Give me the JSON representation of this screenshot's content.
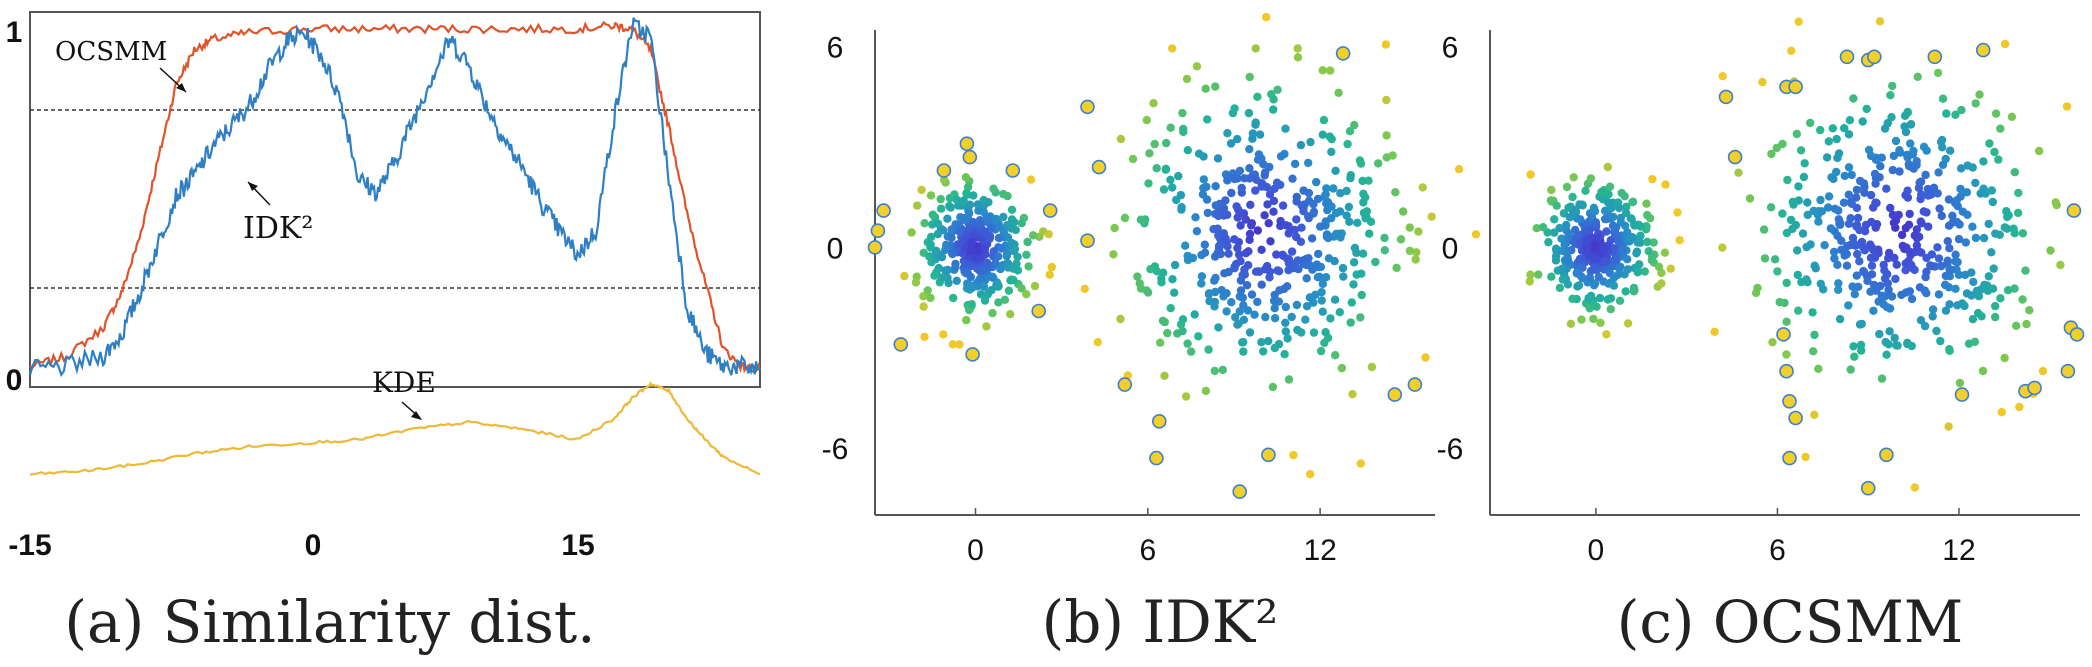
{
  "chart_data": [
    {
      "id": "a",
      "type": "line",
      "caption": "(a) Similarity dist.",
      "xlim": [
        -15,
        25
      ],
      "x_ticks": [
        "-15",
        "0",
        "15"
      ],
      "y_ticks": [
        "1",
        "0"
      ],
      "grid": false,
      "reference_lines_y": [
        0.82,
        0.25
      ],
      "annotations": [
        {
          "text": "OCSMM",
          "series": "OCSMM"
        },
        {
          "text": "IDK²",
          "series": "IDK²"
        },
        {
          "text": "KDE",
          "series": "KDE"
        }
      ],
      "series": [
        {
          "name": "OCSMM",
          "color": "#e0542c",
          "x": [
            -15,
            -13,
            -11,
            -10,
            -9,
            -8,
            -7,
            -6,
            -5,
            -3,
            0,
            3,
            6,
            9,
            12,
            15,
            17,
            18,
            19,
            20,
            21,
            22,
            23,
            24,
            25
          ],
          "y": [
            0.01,
            0.04,
            0.12,
            0.22,
            0.38,
            0.6,
            0.82,
            0.92,
            0.95,
            0.97,
            0.98,
            0.98,
            0.98,
            0.98,
            0.98,
            0.98,
            0.99,
            0.98,
            0.92,
            0.7,
            0.45,
            0.25,
            0.06,
            0.01,
            0.0
          ]
        },
        {
          "name": "IDK²",
          "color": "#2f7fc4",
          "x": [
            -15,
            -13,
            -11,
            -10,
            -9,
            -8,
            -7,
            -6,
            -5,
            -4,
            -3,
            -2,
            -1,
            0,
            1,
            2,
            3,
            4,
            5,
            6,
            7,
            8,
            9,
            10,
            11,
            12,
            13,
            14,
            15,
            16,
            17,
            18,
            19,
            20,
            21,
            22,
            23,
            24,
            25
          ],
          "y": [
            0.0,
            0.01,
            0.04,
            0.1,
            0.22,
            0.36,
            0.5,
            0.56,
            0.64,
            0.7,
            0.76,
            0.86,
            0.94,
            0.97,
            0.9,
            0.78,
            0.55,
            0.51,
            0.6,
            0.72,
            0.84,
            0.95,
            0.88,
            0.76,
            0.66,
            0.58,
            0.48,
            0.4,
            0.33,
            0.4,
            0.72,
            0.99,
            0.96,
            0.55,
            0.18,
            0.05,
            0.01,
            0.01,
            0.0
          ]
        },
        {
          "name": "KDE",
          "color": "#edb93a",
          "x": [
            -15,
            -12,
            -9,
            -6,
            -3,
            0,
            3,
            6,
            9,
            12,
            15,
            17,
            18,
            19,
            20,
            21,
            22,
            23,
            25
          ],
          "y": [
            -0.3,
            -0.29,
            -0.27,
            -0.24,
            -0.22,
            -0.21,
            -0.2,
            -0.17,
            -0.15,
            -0.17,
            -0.2,
            -0.14,
            -0.08,
            -0.04,
            -0.06,
            -0.14,
            -0.2,
            -0.25,
            -0.3
          ]
        }
      ]
    },
    {
      "id": "b",
      "type": "scatter",
      "caption": "(b) IDK²",
      "xlim": [
        -3.5,
        16
      ],
      "ylim": [
        -8,
        6.5
      ],
      "x_ticks": [
        0,
        6,
        12
      ],
      "y_ticks": [
        6,
        0,
        -6
      ],
      "colormap": "viridis (yellow = low similarity, blue = high similarity)",
      "clusters": [
        {
          "center": [
            0,
            0
          ],
          "spread": 1.25,
          "count": 320
        },
        {
          "center": [
            10,
            0.5
          ],
          "spread": 2.9,
          "count": 460
        }
      ],
      "highlighted_points": [
        [
          -0.3,
          3.1
        ],
        [
          -0.2,
          2.7
        ],
        [
          -1.1,
          2.3
        ],
        [
          1.3,
          2.3
        ],
        [
          2.6,
          1.1
        ],
        [
          -3.2,
          1.1
        ],
        [
          -3.4,
          0.5
        ],
        [
          -3.5,
          0
        ],
        [
          -2.6,
          -2.9
        ],
        [
          2.2,
          -1.9
        ],
        [
          -0.1,
          -3.2
        ],
        [
          3.9,
          4.2
        ],
        [
          4.3,
          2.4
        ],
        [
          3.9,
          0.2
        ],
        [
          5.2,
          -4.1
        ],
        [
          6.4,
          -5.2
        ],
        [
          6.3,
          -6.3
        ],
        [
          9.2,
          -7.3
        ],
        [
          10.2,
          -6.2
        ],
        [
          12.8,
          5.8
        ],
        [
          14.6,
          -4.4
        ],
        [
          15.3,
          -4.1
        ]
      ]
    },
    {
      "id": "c",
      "type": "scatter",
      "caption": "(c) OCSMM",
      "xlim": [
        -3.5,
        16
      ],
      "ylim": [
        -8,
        6.5
      ],
      "x_ticks": [
        0,
        6,
        12
      ],
      "y_ticks": [
        6,
        0,
        -6
      ],
      "colormap": "viridis (yellow = low similarity, blue = high similarity)",
      "clusters": [
        {
          "center": [
            0,
            0
          ],
          "spread": 1.25,
          "count": 330
        },
        {
          "center": [
            10,
            0.5
          ],
          "spread": 2.9,
          "count": 460
        }
      ],
      "highlighted_points": [
        [
          4.3,
          4.5
        ],
        [
          4.6,
          2.7
        ],
        [
          6.3,
          4.8
        ],
        [
          6.6,
          4.8
        ],
        [
          8.3,
          5.7
        ],
        [
          9.0,
          5.6
        ],
        [
          9.2,
          5.7
        ],
        [
          11.2,
          5.7
        ],
        [
          12.8,
          5.9
        ],
        [
          6.2,
          -2.6
        ],
        [
          6.3,
          -3.7
        ],
        [
          6.4,
          -4.6
        ],
        [
          6.6,
          -5.1
        ],
        [
          6.4,
          -6.3
        ],
        [
          9.6,
          -6.2
        ],
        [
          9.0,
          -7.2
        ],
        [
          12.1,
          -4.4
        ],
        [
          14.2,
          -4.3
        ],
        [
          14.5,
          -4.2
        ],
        [
          15.6,
          -3.7
        ],
        [
          15.7,
          -2.4
        ],
        [
          15.9,
          -2.6
        ],
        [
          15.8,
          1.1
        ]
      ]
    }
  ]
}
